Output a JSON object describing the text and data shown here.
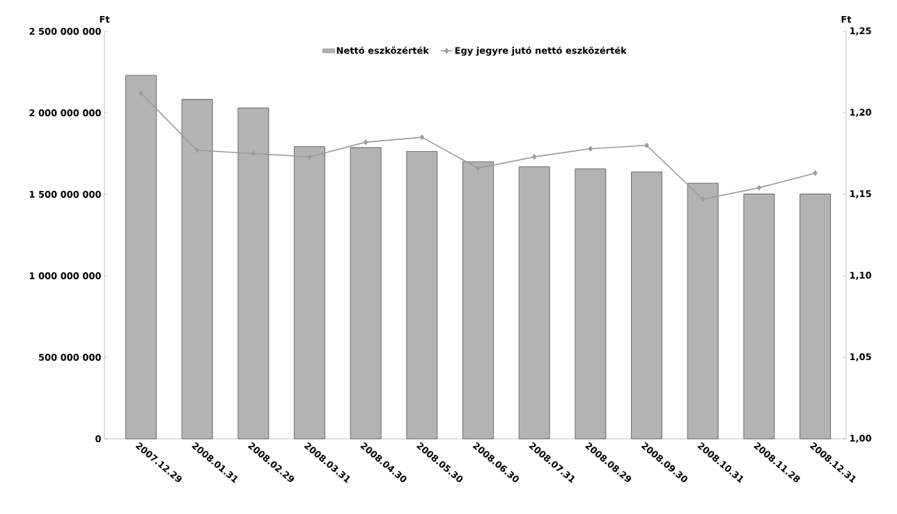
{
  "chart_data": {
    "type": "bar",
    "ylabel": "Ft",
    "y2label": "Ft",
    "legend": "top",
    "marker": "diamond",
    "categories": [
      "2007.12.29",
      "2008.01.31",
      "2008.02.29",
      "2008.03.31",
      "2008.04.30",
      "2008.05.30",
      "2008.06.30",
      "2008.07.31",
      "2008.08.29",
      "2008.09.30",
      "2008.10.31",
      "2008.11.28",
      "2008.12.31"
    ],
    "series": [
      {
        "name": "Nettó eszközérték",
        "color": "#b3b3b3",
        "values": [
          2230000000,
          2083000000,
          2030000000,
          1793000000,
          1787000000,
          1763000000,
          1700000000,
          1669000000,
          1656000000,
          1637000000,
          1568000000,
          1502000000,
          1502000000
        ]
      },
      {
        "name": "Egy jegyre jutó nettó eszközérték",
        "type": "line",
        "axis": "y2",
        "color": "#9a9a9a",
        "values": [
          1.212,
          1.177,
          1.175,
          1.173,
          1.182,
          1.185,
          1.166,
          1.173,
          1.178,
          1.18,
          1.147,
          1.154,
          1.163
        ]
      }
    ],
    "ylim": [
      0,
      2500000000
    ],
    "yticks": [
      0,
      {
        "value": 500000000,
        "label": "500 000 000"
      },
      {
        "value": 1000000000,
        "label": "1 000 000 000"
      },
      {
        "value": 1500000000,
        "label": "1 500 000 000"
      },
      {
        "value": 2000000000,
        "label": "2 000 000 000"
      },
      {
        "value": 2500000000,
        "label": "2 500 000 000"
      }
    ],
    "y2lim": [
      1,
      1.25
    ],
    "y2ticks": [
      {
        "value": 1,
        "label": "1,00"
      },
      {
        "value": 1.05,
        "label": "1,05"
      },
      {
        "value": 1.1,
        "label": "1,10"
      },
      {
        "value": 1.15,
        "label": "1,15"
      },
      {
        "value": 1.2,
        "label": "1,20"
      },
      {
        "value": 1.25,
        "label": "1,25"
      }
    ]
  }
}
